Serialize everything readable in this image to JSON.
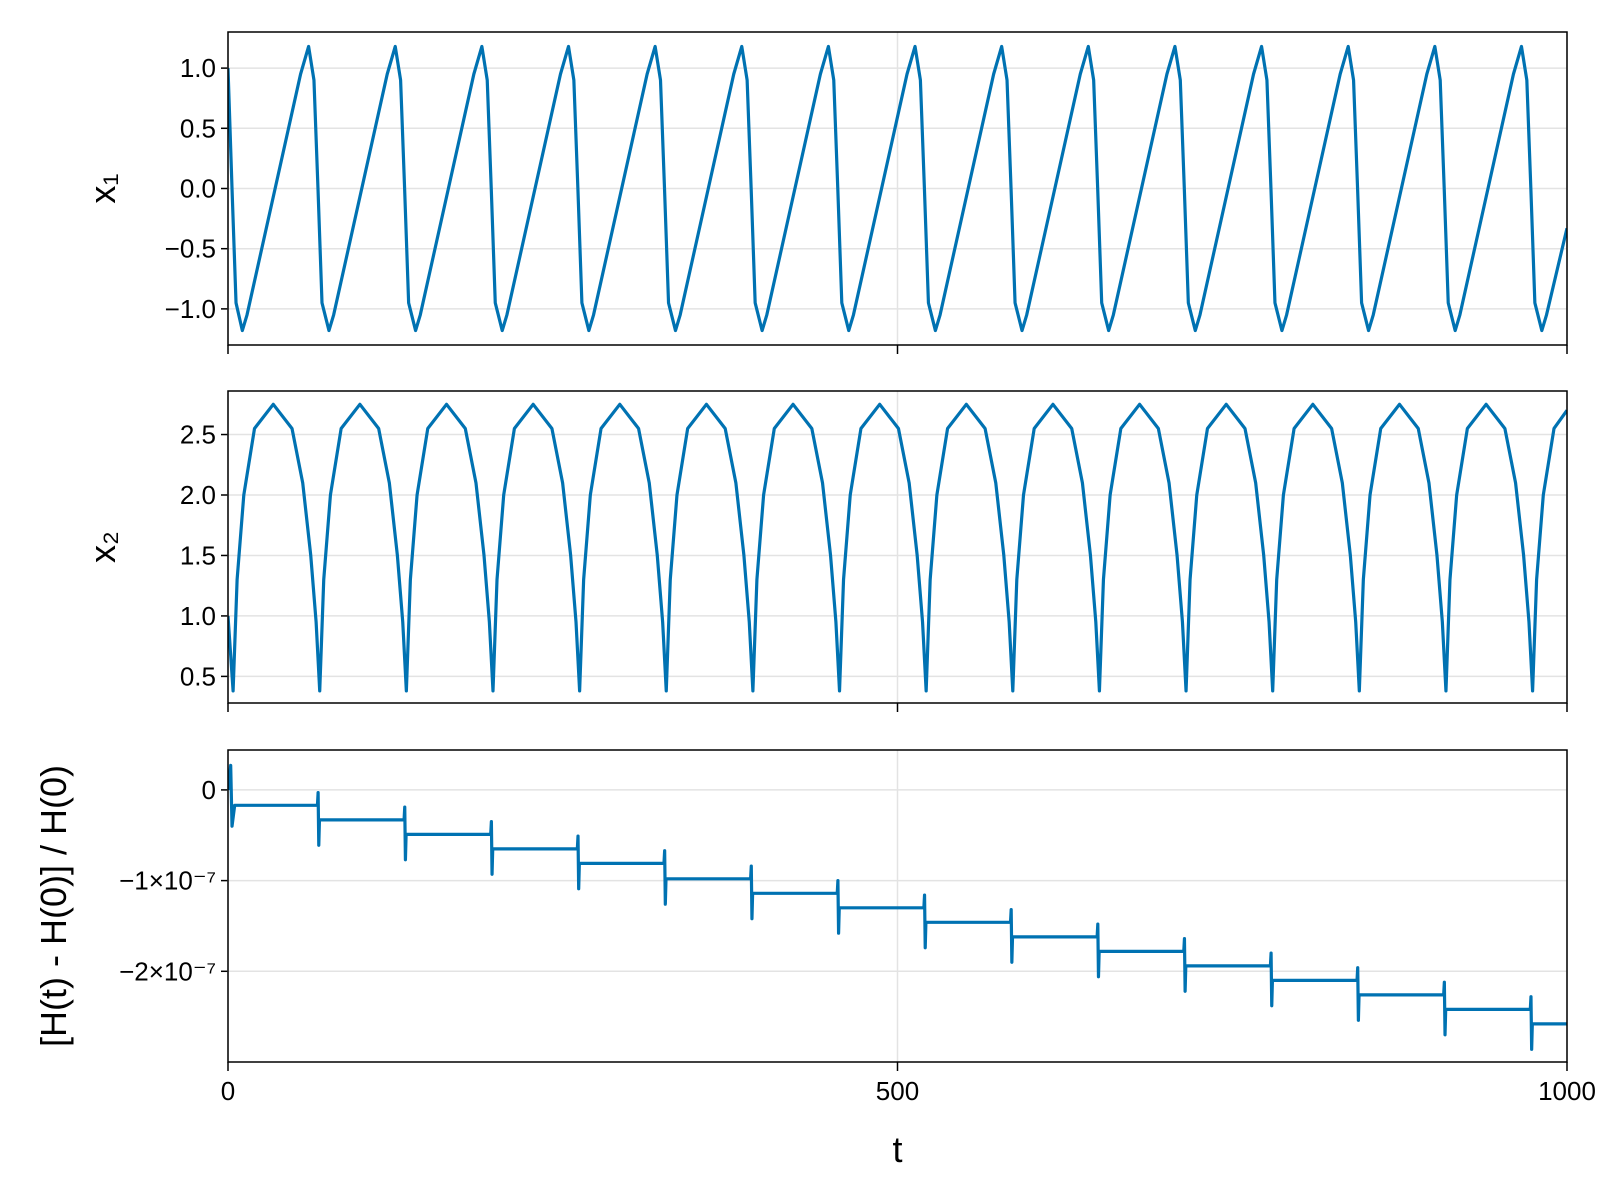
{
  "chart_data": [
    {
      "type": "line",
      "ylabel": "x₁",
      "color": "#0072b2",
      "grid": true,
      "show_xticklabels": false,
      "xlim": [
        0,
        1000
      ],
      "xticks": [
        0,
        500,
        1000
      ],
      "ylim": [
        -1.3,
        1.3
      ],
      "yticks": [
        {
          "value": 1.0,
          "label": "1.0"
        },
        0.5,
        {
          "value": 0.0,
          "label": "0.0"
        },
        {
          "value": -0.5,
          "label": "−0.5"
        },
        {
          "value": -1.0,
          "label": "−1.0"
        }
      ],
      "x": [
        0,
        3,
        6,
        10.7,
        14.2,
        54.2,
        60.2,
        64.2,
        67.2,
        70.2,
        75.4,
        78.9,
        118.9,
        124.9,
        128.9,
        131.9,
        134.9,
        140.1,
        143.6,
        183.6,
        189.6,
        193.6,
        196.6,
        199.6,
        204.8,
        208.3,
        248.3,
        254.3,
        258.3,
        261.3,
        264.3,
        269.5,
        273,
        313,
        319,
        323,
        326,
        329,
        334.2,
        337.7,
        377.7,
        383.7,
        387.7,
        390.7,
        393.7,
        398.9,
        402.4,
        442.4,
        448.4,
        452.4,
        455.4,
        458.4,
        463.6,
        467.1,
        507.1,
        513.1,
        517.1,
        520.1,
        523.1,
        528.3,
        531.8,
        571.8,
        577.8,
        581.8,
        584.8,
        587.8,
        593,
        596.5,
        636.5,
        642.5,
        646.5,
        649.5,
        652.5,
        657.7,
        661.2,
        701.2,
        707.2,
        711.2,
        714.2,
        717.2,
        722.4,
        725.9,
        765.9,
        771.9,
        775.9,
        778.9,
        781.9,
        787.1,
        790.6,
        830.6,
        836.6,
        840.6,
        843.6,
        846.6,
        851.8,
        855.3,
        895.3,
        901.3,
        905.3,
        908.3,
        911.3,
        916.5,
        920,
        960,
        966,
        970,
        973,
        976,
        981.2,
        984.7,
        1000
      ],
      "values": [
        1.0,
        0,
        -0.95,
        -1.18,
        -1.05,
        0.95,
        1.18,
        0.9,
        0,
        -0.95,
        -1.18,
        -1.05,
        0.95,
        1.18,
        0.9,
        0,
        -0.95,
        -1.18,
        -1.05,
        0.95,
        1.18,
        0.9,
        0,
        -0.95,
        -1.18,
        -1.05,
        0.95,
        1.18,
        0.9,
        0,
        -0.95,
        -1.18,
        -1.05,
        0.95,
        1.18,
        0.9,
        0,
        -0.95,
        -1.18,
        -1.05,
        0.95,
        1.18,
        0.9,
        0,
        -0.95,
        -1.18,
        -1.05,
        0.95,
        1.18,
        0.9,
        0,
        -0.95,
        -1.18,
        -1.05,
        0.95,
        1.18,
        0.9,
        0,
        -0.95,
        -1.18,
        -1.05,
        0.95,
        1.18,
        0.9,
        0,
        -0.95,
        -1.18,
        -1.05,
        0.95,
        1.18,
        0.9,
        0,
        -0.95,
        -1.18,
        -1.05,
        0.95,
        1.18,
        0.9,
        0,
        -0.95,
        -1.18,
        -1.05,
        0.95,
        1.18,
        0.9,
        0,
        -0.95,
        -1.18,
        -1.05,
        0.95,
        1.18,
        0.9,
        0,
        -0.95,
        -1.18,
        -1.05,
        0.95,
        1.18,
        0.9,
        0,
        -0.95,
        -1.18,
        -1.05,
        0.95,
        1.18,
        0.9,
        0,
        -0.95,
        -1.18,
        -1.05,
        -0.33
      ]
    },
    {
      "type": "line",
      "ylabel": "x₂",
      "color": "#0072b2",
      "grid": true,
      "show_xticklabels": false,
      "xlim": [
        0,
        1000
      ],
      "xticks": [
        0,
        500,
        1000
      ],
      "ylim": [
        0.28,
        2.86
      ],
      "yticks": [
        2.5,
        {
          "value": 2.0,
          "label": "2.0"
        },
        1.5,
        {
          "value": 1.0,
          "label": "1.0"
        },
        0.5
      ],
      "x": [
        0,
        3.8,
        6.8,
        11.8,
        19.8,
        33.8,
        47.8,
        55.8,
        61.8,
        65.8,
        68.5,
        71.5,
        76.5,
        84.5,
        98.5,
        112.5,
        120.5,
        126.5,
        130.5,
        133.2,
        136.2,
        141.2,
        149.2,
        163.2,
        177.2,
        185.2,
        191.2,
        195.2,
        197.9,
        200.9,
        205.9,
        213.9,
        227.9,
        241.9,
        249.9,
        255.9,
        259.9,
        262.6,
        265.6,
        270.6,
        278.6,
        292.6,
        306.6,
        314.6,
        320.6,
        324.6,
        327.3,
        330.3,
        335.3,
        343.3,
        357.3,
        371.3,
        379.3,
        385.3,
        389.3,
        392,
        395,
        400,
        408,
        422,
        436,
        444,
        450,
        454,
        456.7,
        459.7,
        464.7,
        472.7,
        486.7,
        500.7,
        508.7,
        514.7,
        518.7,
        521.4,
        524.4,
        529.4,
        537.4,
        551.4,
        565.4,
        573.4,
        579.4,
        583.4,
        586.1,
        589.1,
        594.1,
        602.1,
        616.1,
        630.1,
        638.1,
        644.1,
        648.1,
        650.8,
        653.8,
        658.8,
        666.8,
        680.8,
        694.8,
        702.8,
        708.8,
        712.8,
        715.5,
        718.5,
        723.5,
        731.5,
        745.5,
        759.5,
        767.5,
        773.5,
        777.5,
        780.2,
        783.2,
        788.2,
        796.2,
        810.2,
        824.2,
        832.2,
        838.2,
        842.2,
        844.9,
        847.9,
        852.9,
        860.9,
        874.9,
        888.9,
        896.9,
        902.9,
        906.9,
        909.6,
        912.6,
        917.6,
        925.6,
        939.6,
        953.6,
        961.6,
        967.6,
        971.6,
        974.3,
        977.3,
        982.3,
        990.3,
        1000
      ],
      "values": [
        1.0,
        0.38,
        1.3,
        2.0,
        2.55,
        2.75,
        2.55,
        2.1,
        1.5,
        0.95,
        0.38,
        1.3,
        2.0,
        2.55,
        2.75,
        2.55,
        2.1,
        1.5,
        0.95,
        0.38,
        1.3,
        2.0,
        2.55,
        2.75,
        2.55,
        2.1,
        1.5,
        0.95,
        0.38,
        1.3,
        2.0,
        2.55,
        2.75,
        2.55,
        2.1,
        1.5,
        0.95,
        0.38,
        1.3,
        2.0,
        2.55,
        2.75,
        2.55,
        2.1,
        1.5,
        0.95,
        0.38,
        1.3,
        2.0,
        2.55,
        2.75,
        2.55,
        2.1,
        1.5,
        0.95,
        0.38,
        1.3,
        2.0,
        2.55,
        2.75,
        2.55,
        2.1,
        1.5,
        0.95,
        0.38,
        1.3,
        2.0,
        2.55,
        2.75,
        2.55,
        2.1,
        1.5,
        0.95,
        0.38,
        1.3,
        2.0,
        2.55,
        2.75,
        2.55,
        2.1,
        1.5,
        0.95,
        0.38,
        1.3,
        2.0,
        2.55,
        2.75,
        2.55,
        2.1,
        1.5,
        0.95,
        0.38,
        1.3,
        2.0,
        2.55,
        2.75,
        2.55,
        2.1,
        1.5,
        0.95,
        0.38,
        1.3,
        2.0,
        2.55,
        2.75,
        2.55,
        2.1,
        1.5,
        0.95,
        0.38,
        1.3,
        2.0,
        2.55,
        2.75,
        2.55,
        2.1,
        1.5,
        0.95,
        0.38,
        1.3,
        2.0,
        2.55,
        2.75,
        2.55,
        2.1,
        1.5,
        0.95,
        0.38,
        1.3,
        2.0,
        2.55,
        2.75,
        2.55,
        2.1,
        1.5,
        0.95,
        0.38,
        1.3,
        2.0,
        2.55,
        2.7
      ]
    },
    {
      "type": "line",
      "ylabel": "[H(t) - H(0)] / H(0)",
      "xlabel": "t",
      "color": "#0072b2",
      "grid": true,
      "show_xticklabels": true,
      "xlim": [
        0,
        1000
      ],
      "xticks": [
        0,
        500,
        1000
      ],
      "ylim": [
        -3e-07,
        4.4e-08
      ],
      "yticks": [
        0,
        {
          "value": -1e-07,
          "label": "−1×10⁻⁷"
        },
        {
          "value": -2e-07,
          "label": "−2×10⁻⁷"
        }
      ],
      "x": [
        0,
        2,
        3,
        5,
        66.8,
        67.3,
        67.8,
        68.3,
        131.5,
        132,
        132.5,
        133,
        196.2,
        196.7,
        197.2,
        197.7,
        260.9,
        261.4,
        261.9,
        262.4,
        325.6,
        326.1,
        326.6,
        327.1,
        390.3,
        390.8,
        391.3,
        391.8,
        455,
        455.5,
        456,
        456.5,
        519.7,
        520.2,
        520.7,
        521.2,
        584.4,
        584.9,
        585.4,
        585.9,
        649.1,
        649.6,
        650.1,
        650.6,
        713.8,
        714.3,
        714.8,
        715.3,
        778.5,
        779,
        779.5,
        780,
        843.2,
        843.7,
        844.2,
        844.7,
        907.9,
        908.4,
        908.9,
        909.4,
        972.6,
        973.1,
        973.6,
        974.1,
        1000
      ],
      "values": [
        0,
        2.7e-08,
        -4e-08,
        -1.7e-08,
        -1.7e-08,
        -3e-09,
        -6.1e-08,
        -3.3e-08,
        -3.3e-08,
        -1.9e-08,
        -7.7e-08,
        -4.9e-08,
        -4.9e-08,
        -3.5e-08,
        -9.3e-08,
        -6.5e-08,
        -6.5e-08,
        -5.1e-08,
        -1.09e-07,
        -8.1e-08,
        -8.1e-08,
        -6.7e-08,
        -1.26e-07,
        -9.8e-08,
        -9.8e-08,
        -8.4e-08,
        -1.42e-07,
        -1.14e-07,
        -1.14e-07,
        -1e-07,
        -1.58e-07,
        -1.3e-07,
        -1.3e-07,
        -1.16e-07,
        -1.74e-07,
        -1.46e-07,
        -1.46e-07,
        -1.32e-07,
        -1.9e-07,
        -1.62e-07,
        -1.62e-07,
        -1.48e-07,
        -2.06e-07,
        -1.78e-07,
        -1.78e-07,
        -1.64e-07,
        -2.22e-07,
        -1.94e-07,
        -1.94e-07,
        -1.8e-07,
        -2.38e-07,
        -2.1e-07,
        -2.1e-07,
        -1.96e-07,
        -2.54e-07,
        -2.26e-07,
        -2.26e-07,
        -2.12e-07,
        -2.7e-07,
        -2.42e-07,
        -2.42e-07,
        -2.28e-07,
        -2.86e-07,
        -2.58e-07,
        -2.58e-07
      ]
    }
  ]
}
